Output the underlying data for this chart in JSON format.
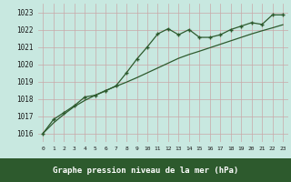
{
  "xlabel": "Graphe pression niveau de la mer (hPa)",
  "bg_color": "#c8e8e0",
  "grid_color": "#c8a8a8",
  "line_color": "#2d5a2d",
  "marker_color": "#2d5a2d",
  "label_bar_color": "#2d5a2d",
  "label_text_color": "#ffffff",
  "x": [
    0,
    1,
    2,
    3,
    4,
    5,
    6,
    7,
    8,
    9,
    10,
    11,
    12,
    13,
    14,
    15,
    16,
    17,
    18,
    19,
    20,
    21,
    22,
    23
  ],
  "y_main": [
    1016.0,
    1016.8,
    1017.2,
    1017.6,
    1018.1,
    1018.2,
    1018.45,
    1018.75,
    1019.5,
    1020.3,
    1021.0,
    1021.75,
    1022.05,
    1021.7,
    1022.0,
    1021.55,
    1021.55,
    1021.7,
    1022.0,
    1022.2,
    1022.4,
    1022.3,
    1022.85,
    1022.85
  ],
  "y_trend": [
    1016.0,
    1016.6,
    1017.1,
    1017.55,
    1017.9,
    1018.2,
    1018.48,
    1018.72,
    1018.96,
    1019.22,
    1019.5,
    1019.78,
    1020.06,
    1020.34,
    1020.56,
    1020.75,
    1020.95,
    1021.15,
    1021.35,
    1021.55,
    1021.75,
    1021.93,
    1022.1,
    1022.28
  ],
  "ylim": [
    1015.5,
    1023.5
  ],
  "yticks": [
    1016,
    1017,
    1018,
    1019,
    1020,
    1021,
    1022,
    1023
  ],
  "xlim": [
    -0.5,
    23.5
  ],
  "xtick_labels": [
    "0",
    "1",
    "2",
    "3",
    "4",
    "5",
    "6",
    "7",
    "8",
    "9",
    "10",
    "11",
    "12",
    "13",
    "14",
    "15",
    "16",
    "17",
    "18",
    "19",
    "20",
    "21",
    "22",
    "23"
  ]
}
